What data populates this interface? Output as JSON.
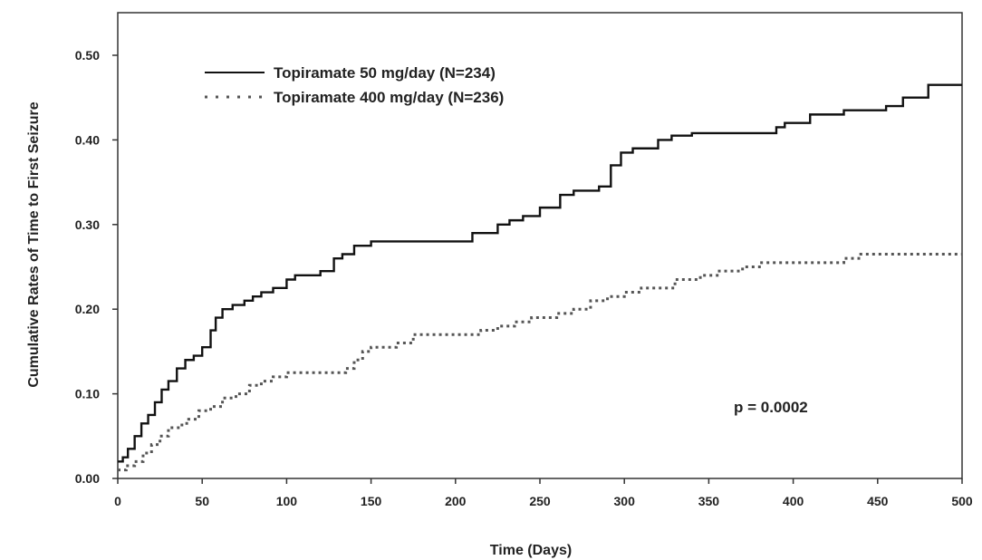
{
  "chart_data": {
    "type": "line",
    "step": true,
    "xlabel": "Time (Days)",
    "ylabel": "Cumulative Rates of Time to First Seizure",
    "xlim": [
      0,
      500
    ],
    "ylim": [
      0,
      0.55
    ],
    "xticks": [
      0,
      50,
      100,
      150,
      200,
      250,
      300,
      350,
      400,
      450,
      500
    ],
    "xtick_labels": [
      "0",
      "50",
      "100",
      "150",
      "200",
      "250",
      "300",
      "350",
      "400",
      "450",
      "500"
    ],
    "yticks": [
      0,
      0.1,
      0.2,
      0.3,
      0.4,
      0.5
    ],
    "ytick_labels": [
      "0.00",
      "0.10",
      "0.20",
      "0.30",
      "0.40",
      "0.50"
    ],
    "grid": false,
    "legend_position": "top-left",
    "annotation": "p = 0.0002",
    "series": [
      {
        "name": "Topiramate 50 mg/day (N=234)",
        "style": "solid",
        "color": "#111111",
        "x": [
          0,
          3,
          6,
          10,
          14,
          18,
          22,
          26,
          30,
          35,
          40,
          45,
          50,
          55,
          58,
          62,
          68,
          75,
          80,
          85,
          92,
          100,
          105,
          115,
          120,
          128,
          133,
          140,
          150,
          160,
          200,
          210,
          225,
          232,
          240,
          250,
          262,
          270,
          285,
          292,
          298,
          305,
          320,
          328,
          340,
          350,
          390,
          395,
          410,
          430,
          455,
          465,
          480,
          500
        ],
        "y": [
          0.02,
          0.025,
          0.035,
          0.05,
          0.065,
          0.075,
          0.09,
          0.105,
          0.115,
          0.13,
          0.14,
          0.145,
          0.155,
          0.175,
          0.19,
          0.2,
          0.205,
          0.21,
          0.215,
          0.22,
          0.225,
          0.235,
          0.24,
          0.24,
          0.245,
          0.26,
          0.265,
          0.275,
          0.28,
          0.28,
          0.28,
          0.29,
          0.3,
          0.305,
          0.31,
          0.32,
          0.335,
          0.34,
          0.345,
          0.37,
          0.385,
          0.39,
          0.4,
          0.405,
          0.408,
          0.408,
          0.415,
          0.42,
          0.43,
          0.435,
          0.44,
          0.45,
          0.465,
          0.465
        ]
      },
      {
        "name": "Topiramate 400 mg/day (N=236)",
        "style": "dotted",
        "color": "#555555",
        "x": [
          0,
          5,
          10,
          15,
          20,
          25,
          30,
          38,
          42,
          48,
          55,
          62,
          70,
          78,
          85,
          92,
          100,
          110,
          125,
          135,
          140,
          145,
          150,
          165,
          175,
          180,
          215,
          225,
          235,
          245,
          260,
          270,
          280,
          290,
          300,
          310,
          330,
          345,
          355,
          370,
          380,
          430,
          440,
          480,
          500
        ],
        "y": [
          0.01,
          0.015,
          0.02,
          0.03,
          0.04,
          0.05,
          0.06,
          0.065,
          0.07,
          0.08,
          0.085,
          0.095,
          0.1,
          0.11,
          0.115,
          0.12,
          0.125,
          0.125,
          0.125,
          0.13,
          0.14,
          0.15,
          0.155,
          0.16,
          0.17,
          0.17,
          0.175,
          0.18,
          0.185,
          0.19,
          0.195,
          0.2,
          0.21,
          0.215,
          0.22,
          0.225,
          0.235,
          0.24,
          0.245,
          0.25,
          0.255,
          0.26,
          0.265,
          0.265,
          0.265
        ]
      }
    ]
  }
}
